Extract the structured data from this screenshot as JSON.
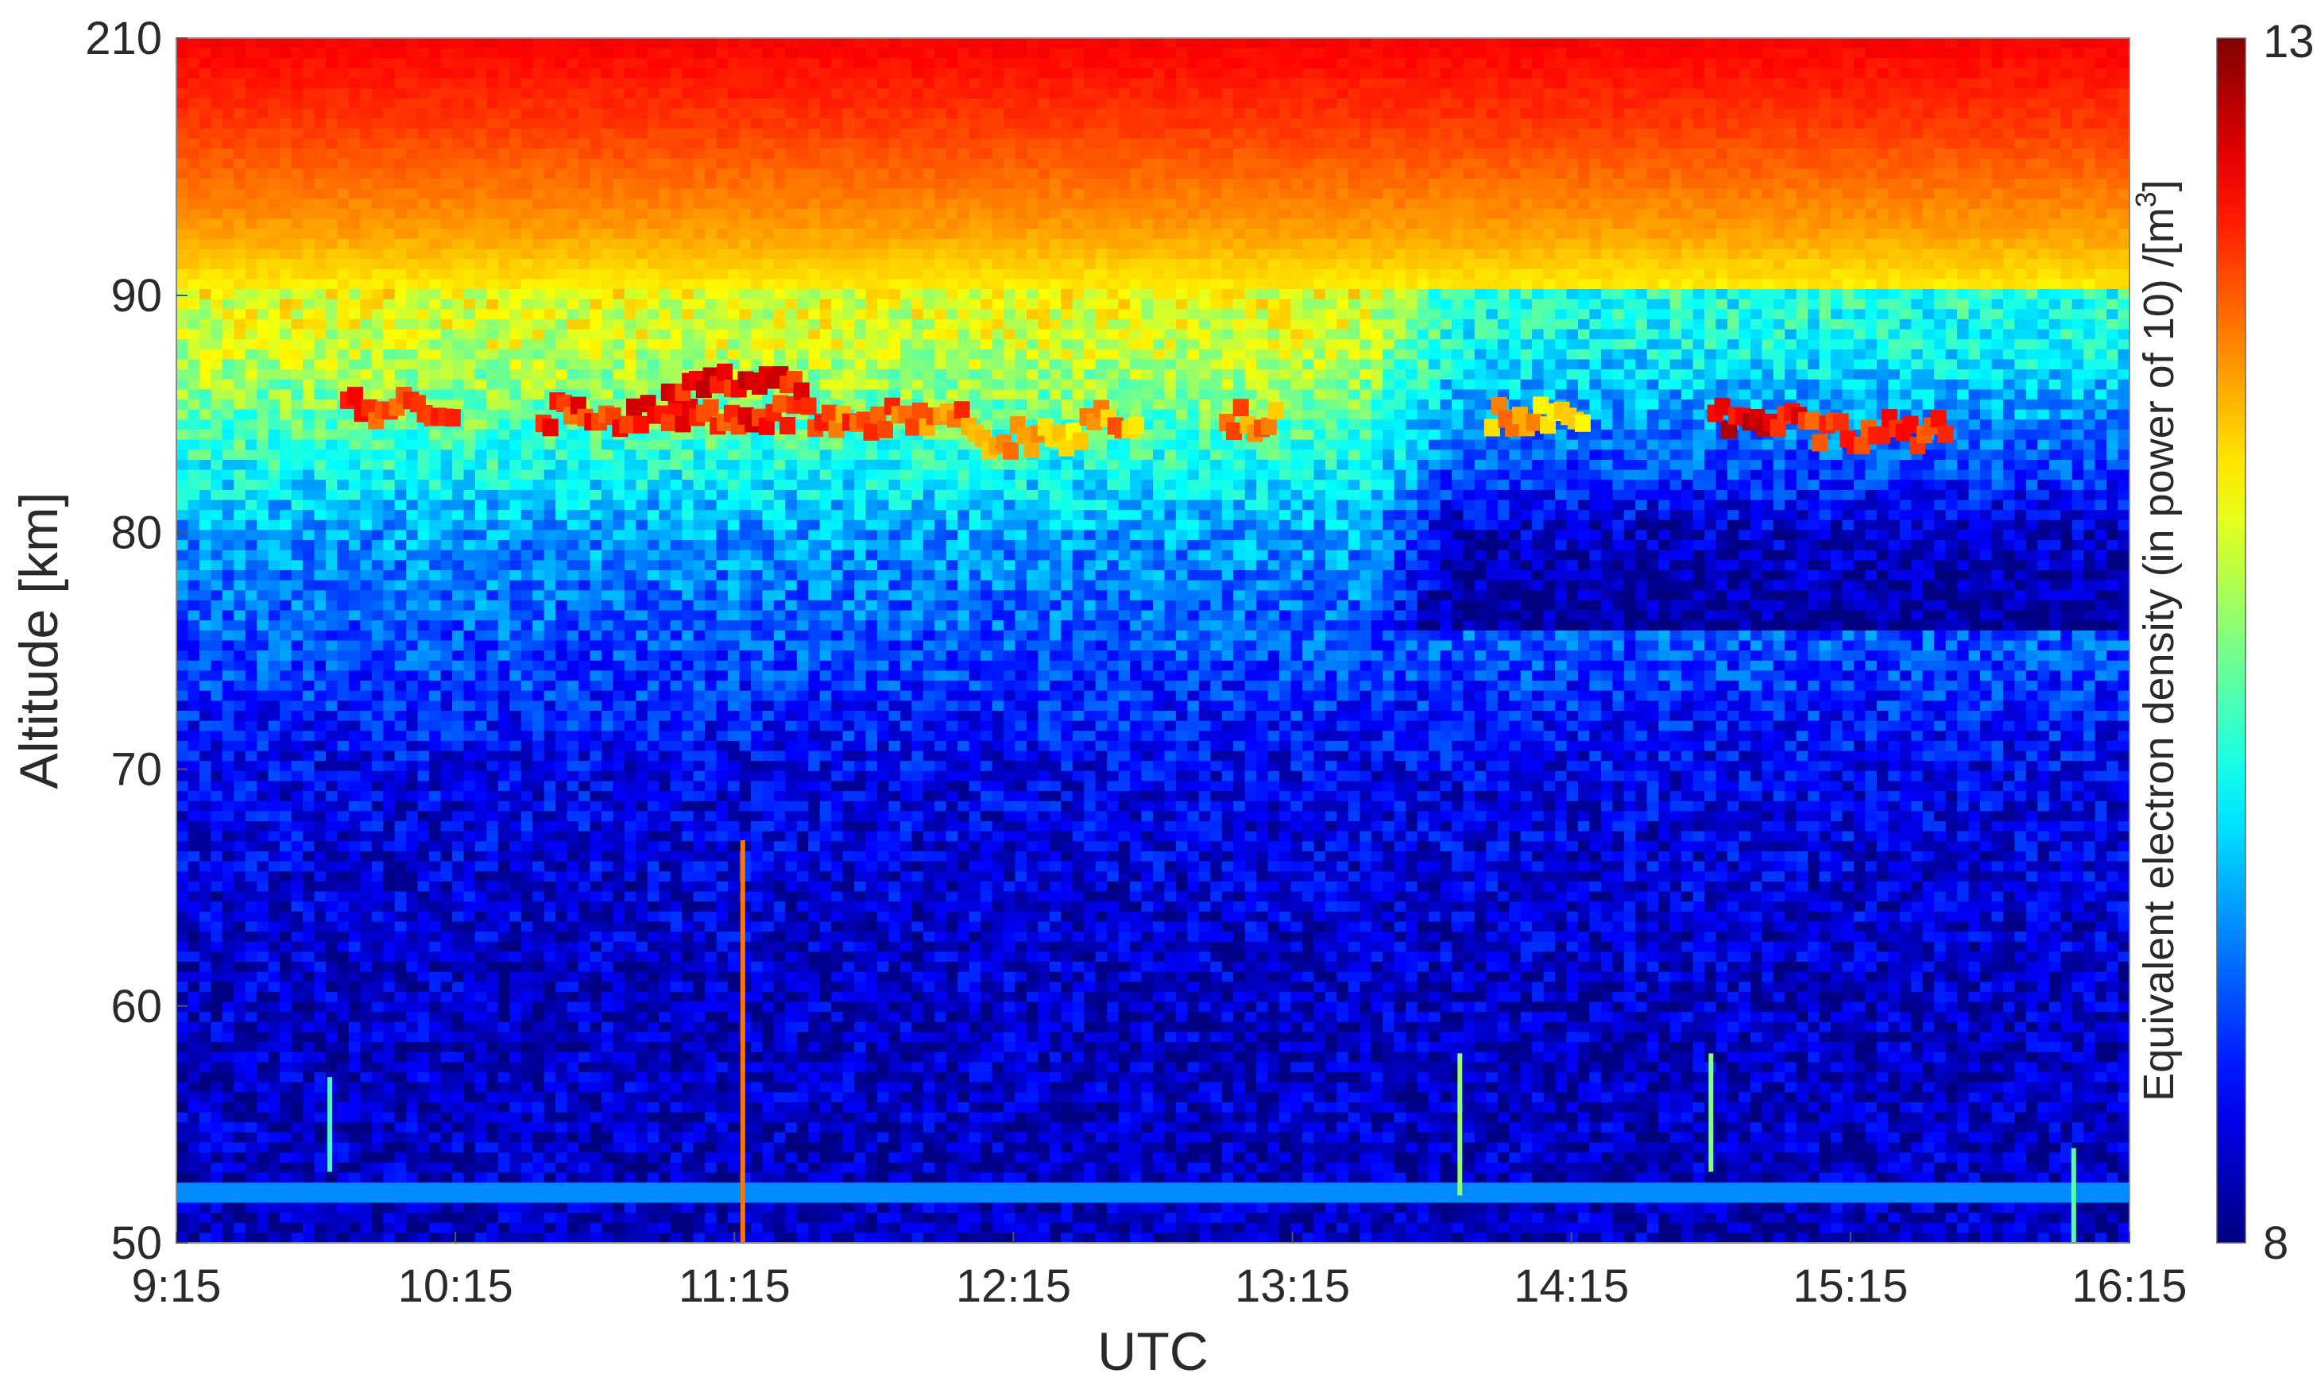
{
  "chart_data": {
    "type": "heatmap",
    "title": "",
    "xlabel": "UTC",
    "ylabel": "Altitude [km]",
    "x_ticks": [
      "9:15",
      "10:15",
      "11:15",
      "12:15",
      "13:15",
      "14:15",
      "15:15",
      "16:15"
    ],
    "x_range_hours_utc": [
      9.25,
      16.25
    ],
    "y_ticks": [
      50,
      60,
      70,
      80,
      90,
      210
    ],
    "y_tick_labels": [
      "50",
      "60",
      "70",
      "80",
      "90",
      "210"
    ],
    "y_axis_note": "piecewise scale: 50-90 km linear, break to 210 km at top",
    "colorbar": {
      "label": "Equivalent electron density (in power of 10) /[m",
      "label_superscript": "3",
      "label_close": "]",
      "min": 8,
      "max": 13,
      "min_label": "8",
      "max_label": "13",
      "colormap": "jet"
    },
    "background_profile": [
      {
        "altitude_km": 50,
        "log10_density": 8.3
      },
      {
        "altitude_km": 60,
        "log10_density": 8.35
      },
      {
        "altitude_km": 70,
        "log10_density": 8.55
      },
      {
        "altitude_km": 75,
        "log10_density": 9.0
      },
      {
        "altitude_km": 80,
        "log10_density": 9.4
      },
      {
        "altitude_km": 84,
        "log10_density": 10.2
      },
      {
        "altitude_km": 88,
        "log10_density": 10.9
      },
      {
        "altitude_km": 93,
        "log10_density": 11.2
      },
      {
        "altitude_km": 120,
        "log10_density": 11.6
      },
      {
        "altitude_km": 170,
        "log10_density": 12.1
      },
      {
        "altitude_km": 210,
        "log10_density": 12.4
      }
    ],
    "quiet_region_after_utc": 13.5,
    "pmse_echoes": [
      {
        "start_utc": 9.85,
        "end_utc": 10.25,
        "altitude_km": 85.3,
        "log10_density": 12.5
      },
      {
        "start_utc": 10.55,
        "end_utc": 11.5,
        "altitude_km": 85.0,
        "log10_density": 12.6
      },
      {
        "start_utc": 11.0,
        "end_utc": 11.5,
        "altitude_km": 86.2,
        "log10_density": 12.7
      },
      {
        "start_utc": 11.5,
        "end_utc": 12.1,
        "altitude_km": 84.8,
        "log10_density": 12.3
      },
      {
        "start_utc": 12.1,
        "end_utc": 12.5,
        "altitude_km": 84.0,
        "log10_density": 11.9
      },
      {
        "start_utc": 12.5,
        "end_utc": 12.7,
        "altitude_km": 84.7,
        "log10_density": 12.0
      },
      {
        "start_utc": 13.0,
        "end_utc": 13.2,
        "altitude_km": 84.8,
        "log10_density": 12.1
      },
      {
        "start_utc": 13.95,
        "end_utc": 14.3,
        "altitude_km": 85.0,
        "log10_density": 11.9
      },
      {
        "start_utc": 14.75,
        "end_utc": 15.1,
        "altitude_km": 84.9,
        "log10_density": 12.8
      },
      {
        "start_utc": 15.1,
        "end_utc": 15.6,
        "altitude_km": 84.3,
        "log10_density": 12.6
      }
    ],
    "meteor_trails": [
      {
        "utc": 11.28,
        "altitude_from_km": 50,
        "altitude_to_km": 67,
        "log10_density": 11.8
      },
      {
        "utc": 13.85,
        "altitude_from_km": 52,
        "altitude_to_km": 58,
        "log10_density": 10.6
      },
      {
        "utc": 14.75,
        "altitude_from_km": 53,
        "altitude_to_km": 58,
        "log10_density": 10.5
      },
      {
        "utc": 9.8,
        "altitude_from_km": 53,
        "altitude_to_km": 57,
        "log10_density": 10.2
      },
      {
        "utc": 16.05,
        "altitude_from_km": 50,
        "altitude_to_km": 54,
        "log10_density": 10.3
      }
    ],
    "noise_band": {
      "altitude_km": 52.2,
      "log10_density": 9.3
    }
  }
}
